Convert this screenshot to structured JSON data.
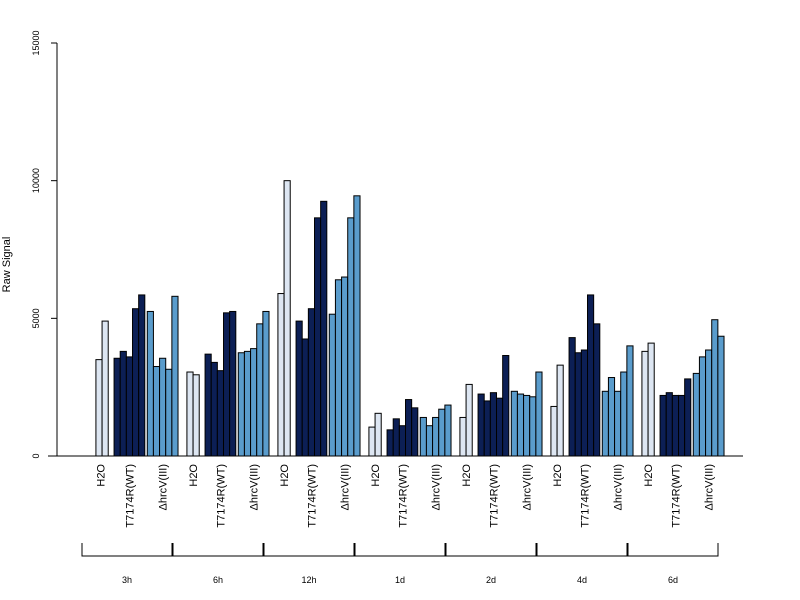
{
  "chart_data": {
    "type": "bar",
    "title": "",
    "xlabel": "",
    "ylabel": "Raw Signal",
    "ylim": [
      0,
      15000
    ],
    "yticks": [
      0,
      5000,
      10000,
      15000
    ],
    "grid": false,
    "legend": "none",
    "colors": {
      "H2O": "#dde6f2",
      "T7174R(WT)": "#0c1f55",
      "ΔhrcV(III)": "#5a9ccc"
    },
    "groups": [
      {
        "label": "3h",
        "conditions": [
          {
            "name": "H2O",
            "values": [
              0,
              3500,
              4900
            ]
          },
          {
            "name": "T7174R(WT)",
            "values": [
              3550,
              3800,
              3600,
              5350,
              5850
            ]
          },
          {
            "name": "ΔhrcV(III)",
            "values": [
              5250,
              3250,
              3550,
              3150,
              5800
            ]
          }
        ]
      },
      {
        "label": "6h",
        "conditions": [
          {
            "name": "H2O",
            "values": [
              3050,
              2950
            ]
          },
          {
            "name": "T7174R(WT)",
            "values": [
              3700,
              3400,
              3100,
              5200,
              5250
            ]
          },
          {
            "name": "ΔhrcV(III)",
            "values": [
              3750,
              3800,
              3900,
              4800,
              5250
            ]
          }
        ]
      },
      {
        "label": "12h",
        "conditions": [
          {
            "name": "H2O",
            "values": [
              5900,
              10000
            ]
          },
          {
            "name": "T7174R(WT)",
            "values": [
              4900,
              4250,
              5350,
              8650,
              9250
            ]
          },
          {
            "name": "ΔhrcV(III)",
            "values": [
              5150,
              6400,
              6500,
              8650,
              9450
            ]
          }
        ]
      },
      {
        "label": "1d",
        "conditions": [
          {
            "name": "H2O",
            "values": [
              1050,
              1550
            ]
          },
          {
            "name": "T7174R(WT)",
            "values": [
              950,
              1350,
              1100,
              2050,
              1750
            ]
          },
          {
            "name": "ΔhrcV(III)",
            "values": [
              1400,
              1100,
              1400,
              1700,
              1850
            ]
          }
        ]
      },
      {
        "label": "2d",
        "conditions": [
          {
            "name": "H2O",
            "values": [
              1400,
              2600
            ]
          },
          {
            "name": "T7174R(WT)",
            "values": [
              2250,
              2000,
              2300,
              2100,
              3650
            ]
          },
          {
            "name": "ΔhrcV(III)",
            "values": [
              2350,
              2250,
              2200,
              2150,
              3050
            ]
          }
        ]
      },
      {
        "label": "4d",
        "conditions": [
          {
            "name": "H2O",
            "values": [
              1800,
              3300
            ]
          },
          {
            "name": "T7174R(WT)",
            "values": [
              4300,
              3750,
              3850,
              5850,
              4800
            ]
          },
          {
            "name": "ΔhrcV(III)",
            "values": [
              2350,
              2850,
              2350,
              3050,
              4000
            ]
          }
        ]
      },
      {
        "label": "6d",
        "conditions": [
          {
            "name": "H2O",
            "values": [
              3800,
              4100
            ]
          },
          {
            "name": "T7174R(WT)",
            "values": [
              2200,
              2300,
              2200,
              2200,
              2800
            ]
          },
          {
            "name": "ΔhrcV(III)",
            "values": [
              3000,
              3600,
              3850,
              4950,
              4350
            ]
          }
        ]
      }
    ]
  }
}
